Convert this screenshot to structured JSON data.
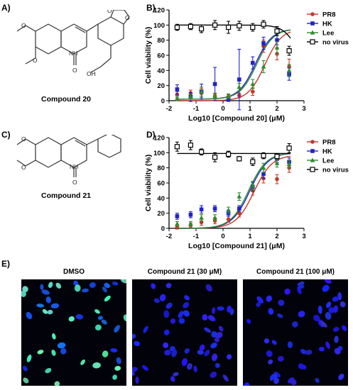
{
  "panels": {
    "a": "A)",
    "b": "B)",
    "c": "C)",
    "d": "D)",
    "e": "E)"
  },
  "compounds": {
    "c20": "Compound 20",
    "c21": "Compound 21"
  },
  "chart_data": [
    {
      "type": "scatter",
      "title": "",
      "xlabel": "Log10 [Compound 20] (μM)",
      "ylabel": "Cell viability (%)",
      "xlim": [
        -2,
        3
      ],
      "ylim": [
        0,
        120
      ],
      "xticks": [
        -2,
        -1,
        0,
        1,
        2,
        3
      ],
      "yticks": [
        0,
        20,
        40,
        60,
        80,
        100,
        120
      ],
      "legend_position": "top-right",
      "grid": false,
      "x": [
        -1.7,
        -1.2,
        -0.8,
        -0.3,
        0.2,
        0.6,
        1.1,
        1.5,
        2.0,
        2.45
      ],
      "series": [
        {
          "name": "PR8",
          "color": "#c0392b",
          "marker": "circle",
          "values": [
            8,
            10,
            10,
            6,
            5,
            7,
            12,
            72,
            62,
            45
          ],
          "errors": [
            4,
            4,
            6,
            3,
            3,
            3,
            5,
            8,
            8,
            10
          ]
        },
        {
          "name": "HK",
          "color": "#2222c8",
          "marker": "square",
          "values": [
            15,
            5,
            12,
            22,
            2,
            28,
            50,
            76,
            80,
            35
          ],
          "errors": [
            6,
            6,
            10,
            22,
            3,
            40,
            8,
            8,
            6,
            8
          ]
        },
        {
          "name": "Lee",
          "color": "#2e8b2e",
          "marker": "triangle",
          "values": [
            3,
            5,
            12,
            6,
            6,
            18,
            22,
            45,
            70,
            40
          ],
          "errors": [
            3,
            3,
            6,
            4,
            3,
            5,
            6,
            8,
            8,
            8
          ]
        },
        {
          "name": "no virus",
          "color": "#000000",
          "marker": "open-square",
          "values": [
            97,
            98,
            95,
            100,
            97,
            99,
            97,
            101,
            92,
            66
          ],
          "errors": [
            4,
            4,
            5,
            6,
            8,
            6,
            5,
            5,
            6,
            6
          ]
        }
      ],
      "curves": [
        {
          "series": "PR8",
          "bottom": 0,
          "top": 95,
          "ec50_log": 1.55,
          "hill": 1.4
        },
        {
          "series": "HK",
          "bottom": 2,
          "top": 95,
          "ec50_log": 1.2,
          "hill": 1.4
        },
        {
          "series": "Lee",
          "bottom": 2,
          "top": 95,
          "ec50_log": 1.25,
          "hill": 1.4
        },
        {
          "series": "no virus",
          "kind": "toxicity",
          "top": 100,
          "bottom": 30,
          "ic50_log": 2.8,
          "hill": 1.6
        }
      ]
    },
    {
      "type": "scatter",
      "title": "",
      "xlabel": "Log10 [Compound 21] (μM)",
      "ylabel": "Cell viability (%)",
      "xlim": [
        -2,
        3
      ],
      "ylim": [
        0,
        120
      ],
      "xticks": [
        -2,
        -1,
        0,
        1,
        2,
        3
      ],
      "yticks": [
        0,
        20,
        40,
        60,
        80,
        100,
        120
      ],
      "legend_position": "top-right",
      "grid": false,
      "x": [
        -1.7,
        -1.2,
        -0.8,
        -0.3,
        0.2,
        0.6,
        1.1,
        1.5,
        2.0,
        2.45
      ],
      "series": [
        {
          "name": "PR8",
          "color": "#c0392b",
          "marker": "circle",
          "values": [
            2,
            4,
            8,
            10,
            12,
            20,
            50,
            66,
            65,
            80
          ],
          "errors": [
            3,
            3,
            4,
            4,
            4,
            5,
            6,
            6,
            6,
            6
          ]
        },
        {
          "name": "HK",
          "color": "#2222c8",
          "marker": "square",
          "values": [
            16,
            18,
            25,
            26,
            20,
            26,
            55,
            72,
            92,
            88
          ],
          "errors": [
            4,
            4,
            5,
            4,
            4,
            4,
            6,
            6,
            5,
            5
          ]
        },
        {
          "name": "Lee",
          "color": "#2e8b2e",
          "marker": "triangle",
          "values": [
            6,
            6,
            14,
            14,
            24,
            42,
            56,
            80,
            86,
            85
          ],
          "errors": [
            3,
            3,
            4,
            4,
            4,
            5,
            6,
            6,
            5,
            5
          ]
        },
        {
          "name": "no virus",
          "color": "#000000",
          "marker": "open-square",
          "values": [
            108,
            110,
            101,
            94,
            98,
            92,
            88,
            96,
            95,
            106
          ],
          "errors": [
            6,
            6,
            4,
            6,
            4,
            3,
            5,
            4,
            3,
            6
          ]
        }
      ],
      "curves": [
        {
          "series": "PR8",
          "bottom": 0,
          "top": 97,
          "ec50_log": 1.15,
          "hill": 1.3
        },
        {
          "series": "HK",
          "bottom": 0,
          "top": 100,
          "ec50_log": 1.0,
          "hill": 1.3
        },
        {
          "series": "Lee",
          "bottom": 0,
          "top": 100,
          "ec50_log": 0.95,
          "hill": 1.3
        },
        {
          "series": "no virus",
          "kind": "flat",
          "level": 99
        }
      ]
    }
  ],
  "microscopy": [
    {
      "title": "DMSO",
      "stain": "dmso"
    },
    {
      "title": "Compound 21 (30 μM)",
      "stain": "blue"
    },
    {
      "title": "Compound 21 (100 μM)",
      "stain": "blue"
    }
  ]
}
